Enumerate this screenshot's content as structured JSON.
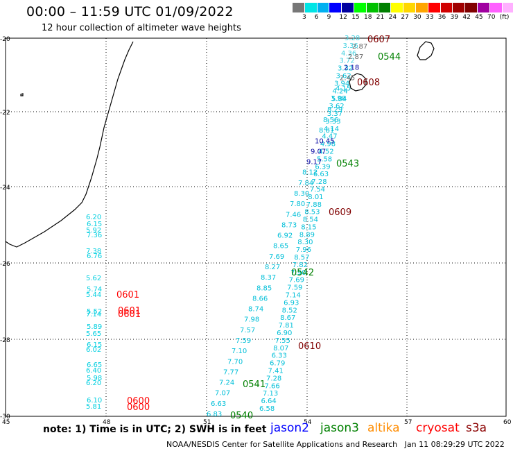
{
  "header": {
    "title": "00:00 – 11:59 UTC 01/09/2022",
    "subtitle": "12 hour collection of altimeter wave heights"
  },
  "color_scale": {
    "colors": [
      "#777777",
      "#00e5e5",
      "#00b0f0",
      "#0000ff",
      "#0000a0",
      "#00ff00",
      "#00c000",
      "#008000",
      "#ffff00",
      "#ffd700",
      "#ffa500",
      "#ff0000",
      "#d00000",
      "#a00000",
      "#800000",
      "#a000a0",
      "#ff60ff",
      "#ffb0ff",
      "#000000"
    ],
    "labels": [
      "3",
      "6",
      "9",
      "12",
      "15",
      "18",
      "21",
      "24",
      "27",
      "30",
      "33",
      "36",
      "39",
      "42",
      "45",
      "70",
      "(ft)"
    ]
  },
  "axes": {
    "x_ticks": [
      "45",
      "48",
      "51",
      "54",
      "57",
      "60"
    ],
    "y_ticks": [
      "-20",
      "-22",
      "-24",
      "-26",
      "-28",
      "-30"
    ]
  },
  "times": {
    "t0607": "0607",
    "t0544": "0544",
    "t0608": "0608",
    "t0543": "0543",
    "t0609": "0609",
    "t0542": "0542",
    "t0601": "0601",
    "t0610": "0610",
    "t0541": "0541",
    "t0600": "0600",
    "t0540": "0540"
  },
  "track_a": [
    "3.28",
    "3.36",
    "4.36",
    "3.72",
    "3.32",
    "3.62",
    "3.94",
    "4.24",
    "3.98",
    "3.62",
    "3.37",
    "3.33",
    "4.14",
    "4.47",
    "4.98",
    "4.52",
    "5.58",
    "6.39",
    "6.63",
    "7.28",
    "7.54",
    "8.01",
    "7.88",
    "8.53",
    "8.54",
    "8.15",
    "8.89",
    "8.30",
    "7.96",
    "8.57",
    "7.82",
    "7.90",
    "7.69",
    "7.59",
    "7.14",
    "6.93",
    "8.52",
    "8.67",
    "7.81",
    "6.90",
    "7.55",
    "8.07",
    "6.33",
    "6.79",
    "7.41",
    "7.28",
    "7.66",
    "7.13",
    "6.64",
    "6.58"
  ],
  "track_b": [
    "2.87",
    "2.87",
    "2.18",
    "2.45",
    "4.15",
    "5.84",
    "8.29",
    "8.56",
    "8.81",
    "10.45",
    "9.07",
    "9.17",
    "8.12",
    "7.84",
    "8.30",
    "7.80",
    "7.46",
    "8.73",
    "6.92",
    "8.65",
    "7.69",
    "8.27",
    "8.37",
    "8.85",
    "8.66",
    "8.74",
    "7.98",
    "7.57",
    "7.59",
    "7.10",
    "7.70",
    "7.77",
    "7.24",
    "7.07",
    "6.63",
    "6.83"
  ],
  "track_c": [
    "6.20",
    "6.15",
    "5.92",
    "7.36",
    "7.38",
    "6.76",
    "5.62",
    "5.74",
    "5.44",
    "5.52",
    "7.14",
    "5.89",
    "5.65",
    "6.15",
    "6.02",
    "6.65",
    "6.40",
    "5.98",
    "6.20",
    "6.10",
    "5.81"
  ],
  "notes": {
    "note_text": "note: 1) Time is in UTC; 2) SWH is in feet",
    "credit": "NOAA/NESDIS Center for Satellite Applications and Research   Jan 11 08:29:29 UTC 2022"
  },
  "satellites": {
    "jason2": "jason2",
    "jason3": "jason3",
    "altika": "altika",
    "cryosat": "cryosat",
    "s3a": "s3a",
    "jason2_color": "#0000ff",
    "jason3_color": "#008000",
    "altika_color": "#ff8c00",
    "cryosat_color": "#ff0000",
    "s3a_color": "#8b0000"
  }
}
